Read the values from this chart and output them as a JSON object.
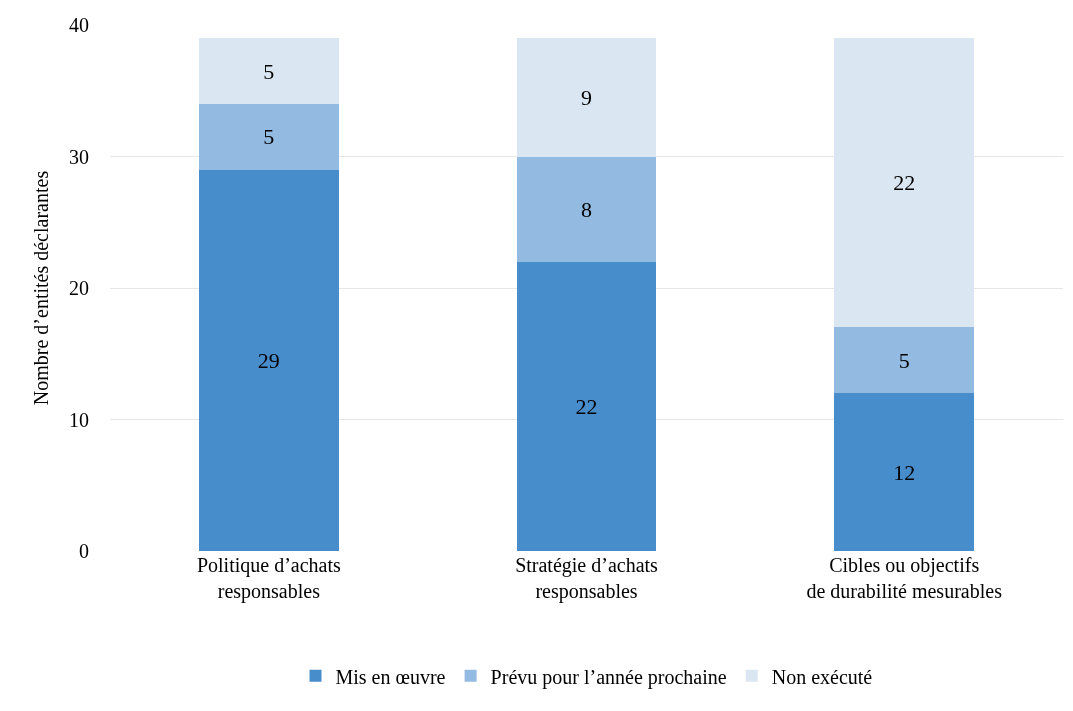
{
  "chart_data": {
    "type": "bar",
    "stacked": true,
    "ylabel": "Nombre d’entités déclarantes",
    "categories": [
      "Politique d’achats\nresponsables",
      "Stratégie d’achats\nresponsables",
      "Cibles ou objectifs\nde durabilité mesurables"
    ],
    "series": [
      {
        "name": "Mis en œuvre",
        "color": "#488dcb",
        "values": [
          29,
          22,
          12
        ]
      },
      {
        "name": "Prévu pour l’année prochaine",
        "color": "#93bae0",
        "values": [
          5,
          8,
          5
        ]
      },
      {
        "name": "Non exécuté",
        "color": "#dae6f2",
        "values": [
          5,
          9,
          22
        ]
      }
    ],
    "ylim": [
      0,
      40
    ],
    "yticks": [
      0,
      10,
      20,
      30,
      40
    ],
    "grid": "y",
    "legend": "bottom",
    "data_labels": true
  }
}
